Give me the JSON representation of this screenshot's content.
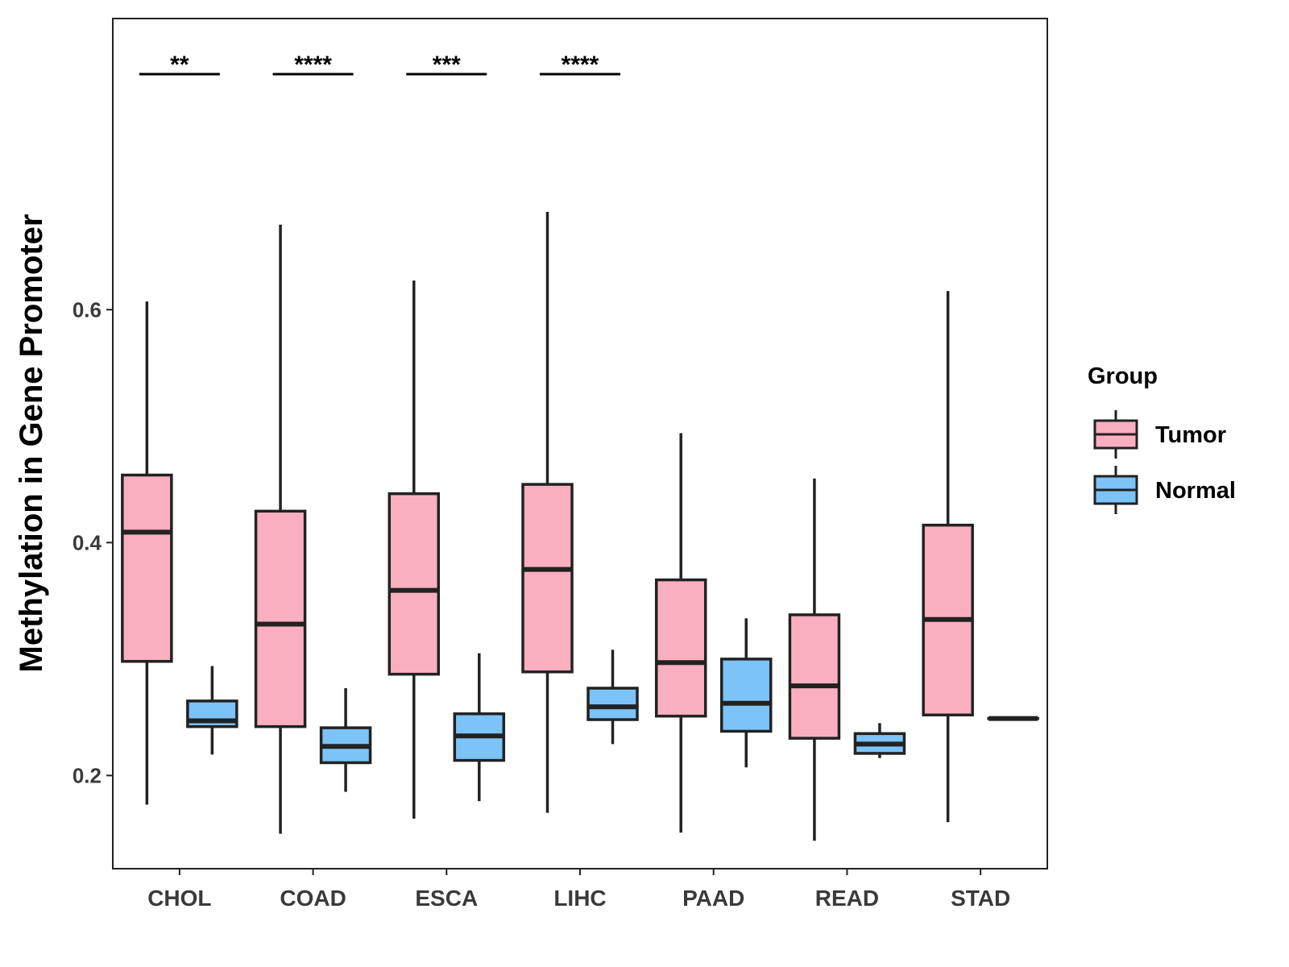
{
  "chart_data": {
    "type": "boxplot",
    "ylabel": "Methylation in Gene Promoter",
    "xlabel": "",
    "ylim": [
      0.12,
      0.85
    ],
    "yticks": [
      0.2,
      0.4,
      0.6
    ],
    "ytick_labels": [
      "0.2",
      "0.4",
      "0.6"
    ],
    "grid": false,
    "categories": [
      "CHOL",
      "COAD",
      "ESCA",
      "LIHC",
      "PAAD",
      "READ",
      "STAD"
    ],
    "legend": {
      "title": "Group",
      "position": "right",
      "entries": [
        {
          "name": "Tumor",
          "color": "#FAAFC0"
        },
        {
          "name": "Normal",
          "color": "#7CC3F7"
        }
      ]
    },
    "series": [
      {
        "name": "Tumor",
        "color": "#FAAFC0",
        "boxes": [
          {
            "min": 0.175,
            "q1": 0.298,
            "median": 0.409,
            "q3": 0.458,
            "max": 0.607
          },
          {
            "min": 0.15,
            "q1": 0.242,
            "median": 0.33,
            "q3": 0.427,
            "max": 0.673
          },
          {
            "min": 0.163,
            "q1": 0.287,
            "median": 0.359,
            "q3": 0.442,
            "max": 0.625
          },
          {
            "min": 0.168,
            "q1": 0.289,
            "median": 0.377,
            "q3": 0.45,
            "max": 0.684
          },
          {
            "min": 0.151,
            "q1": 0.251,
            "median": 0.297,
            "q3": 0.368,
            "max": 0.494
          },
          {
            "min": 0.144,
            "q1": 0.232,
            "median": 0.277,
            "q3": 0.338,
            "max": 0.455
          },
          {
            "min": 0.16,
            "q1": 0.252,
            "median": 0.334,
            "q3": 0.415,
            "max": 0.616
          }
        ]
      },
      {
        "name": "Normal",
        "color": "#7CC3F7",
        "boxes": [
          {
            "min": 0.218,
            "q1": 0.242,
            "median": 0.247,
            "q3": 0.264,
            "max": 0.294
          },
          {
            "min": 0.186,
            "q1": 0.211,
            "median": 0.225,
            "q3": 0.241,
            "max": 0.275
          },
          {
            "min": 0.178,
            "q1": 0.213,
            "median": 0.234,
            "q3": 0.253,
            "max": 0.305
          },
          {
            "min": 0.227,
            "q1": 0.248,
            "median": 0.259,
            "q3": 0.275,
            "max": 0.308
          },
          {
            "min": 0.207,
            "q1": 0.238,
            "median": 0.262,
            "q3": 0.3,
            "max": 0.335
          },
          {
            "min": 0.215,
            "q1": 0.219,
            "median": 0.227,
            "q3": 0.236,
            "max": 0.245
          },
          {
            "min": 0.249,
            "q1": 0.249,
            "median": 0.249,
            "q3": 0.249,
            "max": 0.249
          }
        ]
      }
    ],
    "annotations": [
      {
        "category": "CHOL",
        "text": "**"
      },
      {
        "category": "COAD",
        "text": "****"
      },
      {
        "category": "ESCA",
        "text": "***"
      },
      {
        "category": "LIHC",
        "text": "****"
      }
    ]
  }
}
